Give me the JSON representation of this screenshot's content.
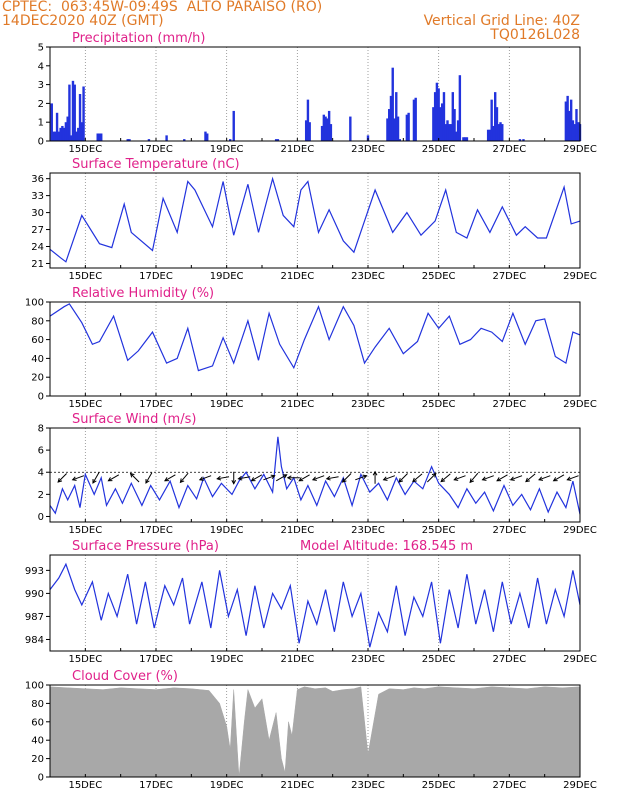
{
  "header": {
    "line1": "CPTEC:  063:45W-09:49S  ALTO PARAISO (RO)",
    "line2": "14DEC2020 40Z (GMT)",
    "right1": "Vertical Grid Line: 40Z",
    "right2": "TQ0126L028"
  },
  "chart_data": [
    {
      "type": "bar",
      "title": "Precipitation (mm/h)",
      "ylim": [
        0,
        5
      ],
      "yticks": [
        0,
        1,
        2,
        3,
        4,
        5
      ],
      "xticks": [
        "15DEC",
        "17DEC",
        "19DEC",
        "21DEC",
        "23DEC",
        "25DEC",
        "27DEC",
        "29DEC"
      ],
      "x_range_days": [
        14.0,
        29.0
      ],
      "x": [
        14.05,
        14.1,
        14.15,
        14.2,
        14.25,
        14.3,
        14.35,
        14.4,
        14.45,
        14.5,
        14.55,
        14.6,
        14.65,
        14.7,
        14.75,
        14.8,
        14.85,
        14.9,
        14.95,
        15.35,
        15.4,
        15.45,
        16.2,
        16.25,
        16.8,
        17.3,
        17.8,
        18.4,
        18.45,
        19.1,
        19.2,
        20.4,
        20.45,
        21.25,
        21.3,
        21.35,
        21.7,
        21.75,
        21.8,
        21.85,
        21.9,
        21.95,
        22.5,
        23.0,
        23.55,
        23.6,
        23.65,
        23.7,
        23.75,
        23.8,
        23.85,
        23.9,
        24.1,
        24.15,
        24.3,
        24.35,
        24.85,
        24.9,
        24.95,
        25.0,
        25.05,
        25.1,
        25.15,
        25.2,
        25.25,
        25.3,
        25.35,
        25.4,
        25.45,
        25.5,
        25.55,
        25.6,
        25.7,
        25.75,
        25.8,
        26.4,
        26.45,
        26.5,
        26.55,
        26.6,
        26.65,
        26.7,
        26.75,
        26.8,
        27.3,
        27.4,
        28.6,
        28.65,
        28.7,
        28.75,
        28.8,
        28.85,
        28.9,
        28.95,
        29.0
      ],
      "values": [
        2.0,
        0.5,
        0.5,
        1.5,
        0.5,
        0.7,
        0.8,
        0.7,
        1.0,
        1.3,
        3.0,
        0.3,
        3.2,
        3.0,
        0.5,
        0.7,
        2.5,
        1.0,
        2.9,
        0.4,
        0.4,
        0.4,
        0.1,
        0.1,
        0.1,
        0.3,
        0.1,
        0.5,
        0.4,
        0.1,
        1.6,
        0.1,
        0.1,
        1.1,
        2.2,
        1.0,
        0.8,
        1.4,
        1.3,
        1.2,
        1.6,
        0.9,
        1.3,
        0.3,
        1.2,
        1.7,
        2.4,
        3.9,
        1.2,
        2.6,
        1.3,
        0.1,
        1.4,
        1.5,
        2.2,
        2.3,
        1.8,
        2.6,
        3.1,
        2.8,
        1.8,
        2.0,
        2.6,
        0.9,
        1.1,
        0.9,
        0.9,
        2.6,
        1.7,
        0.5,
        1.1,
        3.5,
        0.2,
        0.2,
        0.2,
        0.6,
        0.6,
        2.2,
        0.8,
        2.6,
        1.8,
        0.9,
        1.0,
        0.9,
        0.1,
        0.1,
        2.1,
        2.4,
        1.6,
        2.2,
        1.1,
        0.9,
        1.7,
        1.0,
        0.9
      ]
    },
    {
      "type": "line",
      "title": "Surface Temperature (nC)",
      "ylim": [
        20.2,
        37.0
      ],
      "yticks": [
        21,
        24,
        27,
        30,
        33,
        36
      ],
      "xticks": [
        "15DEC",
        "17DEC",
        "19DEC",
        "21DEC",
        "23DEC",
        "25DEC",
        "27DEC",
        "29DEC"
      ],
      "x_range_days": [
        14.0,
        29.0
      ],
      "x": [
        14.0,
        14.3,
        14.45,
        14.9,
        15.4,
        15.75,
        16.1,
        16.3,
        16.9,
        17.2,
        17.6,
        17.9,
        18.1,
        18.6,
        18.9,
        19.2,
        19.6,
        19.9,
        20.3,
        20.6,
        20.9,
        21.1,
        21.3,
        21.6,
        21.9,
        22.3,
        22.6,
        22.9,
        23.2,
        23.7,
        24.1,
        24.5,
        24.9,
        25.2,
        25.5,
        25.8,
        26.1,
        26.45,
        26.8,
        27.2,
        27.45,
        27.8,
        28.05,
        28.55,
        28.75,
        29.0
      ],
      "values": [
        23.5,
        22.0,
        21.3,
        29.5,
        24.5,
        23.8,
        31.5,
        26.5,
        23.3,
        32.5,
        26.5,
        35.5,
        34.0,
        27.5,
        35.5,
        26.0,
        35.0,
        26.5,
        36.0,
        29.5,
        27.5,
        34.0,
        35.5,
        26.5,
        30.5,
        25.0,
        23.0,
        28.5,
        34.0,
        26.5,
        30.0,
        26.0,
        28.5,
        34.0,
        26.5,
        25.5,
        30.5,
        26.5,
        31.0,
        26.0,
        27.5,
        25.5,
        25.5,
        34.5,
        28.0,
        28.5
      ]
    },
    {
      "type": "line",
      "title": "Relative Humidity (%)",
      "ylim": [
        0,
        100
      ],
      "yticks": [
        0,
        20,
        40,
        60,
        80,
        100
      ],
      "xticks": [
        "15DEC",
        "17DEC",
        "19DEC",
        "21DEC",
        "23DEC",
        "25DEC",
        "27DEC",
        "29DEC"
      ],
      "x_range_days": [
        14.0,
        29.0
      ],
      "x": [
        14.0,
        14.4,
        14.55,
        14.9,
        15.2,
        15.4,
        15.8,
        16.2,
        16.5,
        16.9,
        17.3,
        17.6,
        17.9,
        18.2,
        18.6,
        18.9,
        19.2,
        19.6,
        19.9,
        20.2,
        20.5,
        20.9,
        21.2,
        21.6,
        21.9,
        22.3,
        22.6,
        22.9,
        23.2,
        23.6,
        24.0,
        24.4,
        24.7,
        25.0,
        25.3,
        25.6,
        25.9,
        26.2,
        26.5,
        26.8,
        27.1,
        27.45,
        27.75,
        28.0,
        28.3,
        28.6,
        28.8,
        29.0
      ],
      "values": [
        85,
        95,
        98,
        78,
        55,
        58,
        85,
        38,
        48,
        68,
        35,
        40,
        72,
        27,
        32,
        62,
        35,
        80,
        38,
        88,
        55,
        30,
        60,
        95,
        60,
        95,
        75,
        35,
        52,
        72,
        45,
        58,
        88,
        72,
        85,
        55,
        60,
        72,
        68,
        58,
        88,
        55,
        80,
        82,
        42,
        35,
        68,
        65
      ]
    },
    {
      "type": "line",
      "title": "Surface Wind (m/s)",
      "ylim": [
        -0.5,
        8.0
      ],
      "yticks": [
        0,
        2,
        4,
        6,
        8
      ],
      "xticks": [
        "15DEC",
        "17DEC",
        "19DEC",
        "21DEC",
        "23DEC",
        "25DEC",
        "27DEC",
        "29DEC"
      ],
      "x_range_days": [
        14.0,
        29.0
      ],
      "x": [
        14.0,
        14.15,
        14.35,
        14.5,
        14.7,
        14.85,
        15.0,
        15.25,
        15.45,
        15.6,
        15.85,
        16.05,
        16.3,
        16.6,
        16.85,
        17.1,
        17.4,
        17.65,
        17.9,
        18.15,
        18.35,
        18.6,
        18.85,
        19.15,
        19.35,
        19.55,
        19.8,
        20.05,
        20.3,
        20.45,
        20.55,
        20.7,
        20.9,
        21.1,
        21.3,
        21.55,
        21.8,
        22.05,
        22.3,
        22.55,
        22.8,
        23.05,
        23.3,
        23.55,
        23.8,
        24.05,
        24.3,
        24.55,
        24.8,
        25.0,
        25.3,
        25.55,
        25.8,
        26.05,
        26.3,
        26.55,
        26.85,
        27.1,
        27.35,
        27.6,
        27.85,
        28.1,
        28.35,
        28.6,
        28.8,
        29.0
      ],
      "values": [
        1.0,
        0.3,
        2.5,
        1.5,
        2.8,
        0.8,
        3.8,
        2.0,
        3.5,
        1.0,
        2.5,
        1.2,
        3.0,
        1.0,
        2.8,
        1.5,
        3.2,
        0.8,
        2.8,
        1.6,
        3.5,
        1.8,
        3.0,
        2.0,
        3.2,
        4.0,
        2.5,
        3.8,
        2.2,
        7.2,
        4.5,
        2.5,
        3.5,
        1.5,
        2.8,
        1.0,
        3.2,
        1.8,
        3.5,
        1.0,
        3.8,
        2.2,
        3.0,
        1.5,
        3.5,
        2.0,
        3.2,
        2.5,
        4.5,
        3.0,
        2.0,
        0.8,
        2.5,
        1.2,
        2.2,
        0.5,
        2.8,
        1.0,
        2.0,
        0.6,
        2.5,
        0.4,
        2.2,
        0.8,
        3.2,
        0.2
      ],
      "arrow_x": [
        14.35,
        14.8,
        15.3,
        15.8,
        16.4,
        16.8,
        17.4,
        17.8,
        18.4,
        18.9,
        19.2,
        19.5,
        19.85,
        20.2,
        20.55,
        20.9,
        21.2,
        21.6,
        22.0,
        22.4,
        22.8,
        23.2,
        23.6,
        24.0,
        24.4,
        24.8,
        25.2,
        25.6,
        26.0,
        26.4,
        26.8,
        27.2,
        27.6,
        28.0,
        28.4,
        28.8
      ],
      "arrow_angle_deg": [
        225,
        200,
        240,
        210,
        135,
        240,
        210,
        230,
        200,
        190,
        270,
        190,
        210,
        20,
        30,
        180,
        210,
        200,
        190,
        225,
        20,
        90,
        200,
        225,
        220,
        45,
        220,
        200,
        230,
        200,
        210,
        200,
        220,
        200,
        210,
        200
      ]
    },
    {
      "type": "line",
      "title": "Surface Pressure (hPa)",
      "annotation": "Model Altitude: 168.545 m",
      "ylim": [
        982.5,
        995.0
      ],
      "yticks": [
        984,
        987,
        990,
        993
      ],
      "xticks": [
        "15DEC",
        "17DEC",
        "19DEC",
        "21DEC",
        "23DEC",
        "25DEC",
        "27DEC",
        "29DEC"
      ],
      "x_range_days": [
        14.0,
        29.0
      ],
      "x": [
        14.0,
        14.25,
        14.45,
        14.7,
        14.9,
        15.2,
        15.45,
        15.65,
        15.9,
        16.2,
        16.45,
        16.7,
        16.95,
        17.25,
        17.5,
        17.75,
        17.95,
        18.3,
        18.55,
        18.8,
        19.05,
        19.3,
        19.55,
        19.8,
        20.05,
        20.3,
        20.55,
        20.8,
        21.05,
        21.3,
        21.55,
        21.8,
        22.05,
        22.3,
        22.55,
        22.8,
        23.05,
        23.3,
        23.55,
        23.8,
        24.05,
        24.3,
        24.55,
        24.8,
        25.05,
        25.3,
        25.55,
        25.8,
        26.05,
        26.3,
        26.55,
        26.8,
        27.05,
        27.3,
        27.55,
        27.8,
        28.05,
        28.3,
        28.55,
        28.8,
        29.0
      ],
      "values": [
        990.5,
        992.0,
        993.8,
        990.5,
        988.5,
        991.5,
        986.5,
        990.0,
        987.0,
        992.5,
        986.0,
        991.5,
        985.5,
        991.0,
        988.5,
        992.0,
        986.0,
        991.5,
        985.5,
        993.0,
        987.0,
        990.5,
        984.5,
        991.0,
        985.5,
        990.0,
        988.0,
        991.0,
        983.5,
        989.0,
        986.0,
        990.5,
        985.0,
        991.5,
        987.0,
        990.0,
        983.0,
        987.5,
        985.0,
        991.0,
        984.5,
        989.5,
        987.0,
        991.5,
        983.5,
        990.5,
        985.5,
        992.5,
        986.0,
        990.5,
        985.0,
        991.5,
        986.0,
        990.0,
        985.5,
        992.0,
        986.0,
        990.5,
        987.0,
        993.0,
        988.5
      ]
    },
    {
      "type": "area",
      "title": "Cloud Cover (%)",
      "ylim": [
        0,
        100
      ],
      "yticks": [
        0,
        20,
        40,
        60,
        80,
        100
      ],
      "xticks": [
        "15DEC",
        "17DEC",
        "19DEC",
        "21DEC",
        "23DEC",
        "25DEC",
        "27DEC",
        "29DEC"
      ],
      "x_range_days": [
        14.0,
        29.0
      ],
      "x": [
        14.0,
        14.5,
        15.0,
        15.5,
        16.0,
        16.5,
        17.0,
        17.5,
        18.0,
        18.5,
        18.8,
        19.0,
        19.1,
        19.2,
        19.35,
        19.5,
        19.6,
        19.8,
        20.0,
        20.2,
        20.4,
        20.55,
        20.65,
        20.75,
        20.85,
        21.0,
        21.2,
        21.5,
        21.8,
        22.0,
        22.3,
        22.6,
        22.8,
        23.0,
        23.3,
        23.6,
        24.0,
        24.3,
        24.6,
        25.0,
        25.5,
        26.0,
        26.5,
        27.0,
        27.5,
        28.0,
        28.5,
        29.0
      ],
      "values": [
        98,
        97,
        96,
        95,
        97,
        96,
        95,
        97,
        96,
        94,
        80,
        55,
        30,
        95,
        0,
        60,
        95,
        75,
        85,
        40,
        70,
        20,
        5,
        60,
        45,
        95,
        98,
        96,
        97,
        93,
        95,
        96,
        98,
        25,
        90,
        96,
        95,
        97,
        96,
        98,
        97,
        96,
        98,
        97,
        96,
        98,
        97,
        98
      ]
    }
  ]
}
